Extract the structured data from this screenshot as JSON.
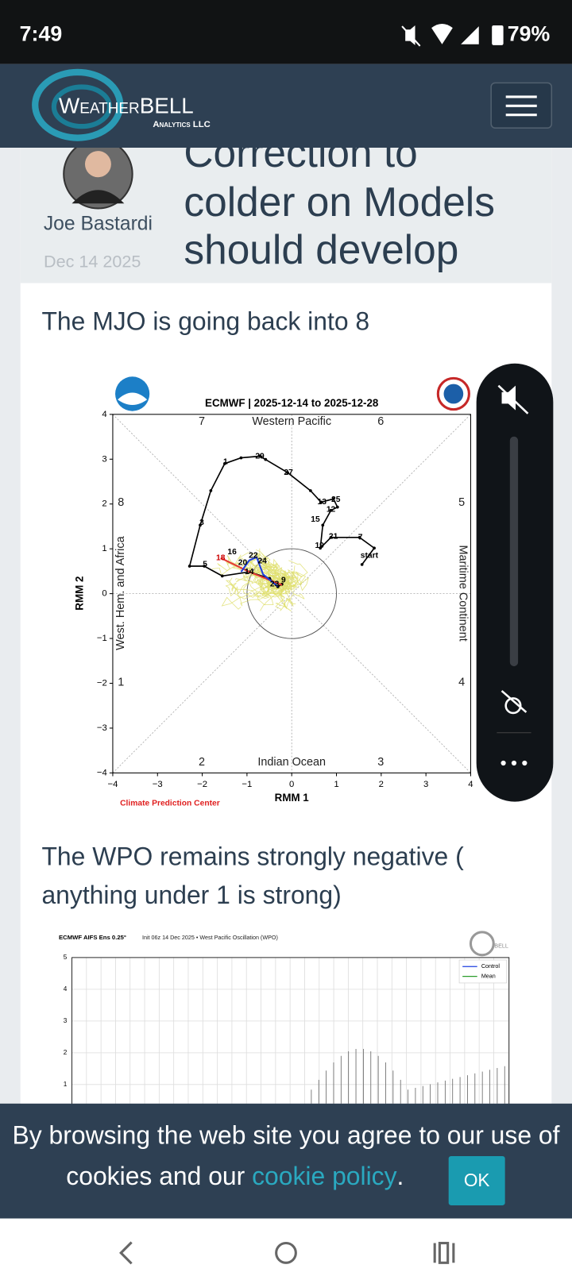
{
  "status_bar": {
    "time": "7:49",
    "battery": "79%"
  },
  "header": {
    "logo": "WeatherBELL",
    "logo_sub": "Analytics LLC"
  },
  "post": {
    "author": "Joe Bastardi",
    "date": "Dec 14 2025",
    "title_lines": [
      "Correction to",
      "colder on Models",
      "should develop"
    ]
  },
  "sections": [
    {
      "heading_lines": [
        "The MJO is going back into 8"
      ]
    },
    {
      "heading_lines": [
        "The WPO remains strongly negative (",
        "anything under 1 is strong)"
      ]
    }
  ],
  "mjo_chart": {
    "title": "ECMWF | 2025-12-14 to 2025-12-28",
    "xlabel": "RMM 1",
    "ylabel": "RMM 2",
    "xlim": [
      -4,
      4
    ],
    "ylim": [
      -4,
      4
    ],
    "xticks": [
      {
        "value": -4,
        "label": "−4"
      },
      {
        "value": -3,
        "label": "−3"
      },
      {
        "value": -2,
        "label": "−2"
      },
      {
        "value": -1,
        "label": "−1"
      },
      0,
      1,
      2,
      3,
      4
    ],
    "yticks": [
      {
        "value": -4,
        "label": "−4"
      },
      {
        "value": -3,
        "label": "−3"
      },
      {
        "value": -2,
        "label": "−2"
      },
      {
        "value": -1,
        "label": "−1"
      },
      0,
      1,
      2,
      3,
      4
    ],
    "phases": [
      "1",
      "2",
      "3",
      "4",
      "5",
      "6",
      "7",
      "8"
    ],
    "regions": [
      "Western Pacific",
      "Indian Ocean",
      "West. Hem. and Africa",
      "Maritime Continent"
    ],
    "credit": "Climate Prediction Center",
    "day_labels": [
      "start",
      "7",
      "21",
      "19",
      "12",
      "25",
      "13",
      "15",
      "27",
      "29",
      "1",
      "3",
      "5",
      "18",
      "16",
      "20",
      "22",
      "24",
      "14",
      "9",
      "23"
    ]
  },
  "wpo_chart": {
    "title": "ECMWF AIFS Ens 0.25°",
    "subtitle": "Init 06z 14 Dec 2025 • West Pacific Oscillation (WPO)",
    "ylim": [
      0.4,
      5
    ],
    "yticks": [
      1,
      2,
      3,
      4,
      5
    ],
    "legend": [
      "Control",
      "Mean"
    ]
  },
  "cookie": {
    "line1": "By browsing the web site you agree to our use of",
    "line2": "cookies and our ",
    "link": "cookie policy",
    "end": ".",
    "button": "OK"
  }
}
